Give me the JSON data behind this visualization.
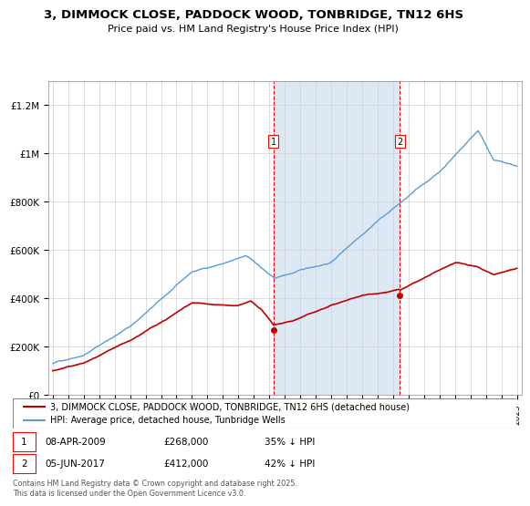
{
  "title_line1": "3, DIMMOCK CLOSE, PADDOCK WOOD, TONBRIDGE, TN12 6HS",
  "title_line2": "Price paid vs. HM Land Registry's House Price Index (HPI)",
  "ylabel_ticks": [
    "£0",
    "£200K",
    "£400K",
    "£600K",
    "£800K",
    "£1M",
    "£1.2M"
  ],
  "ylabel_values": [
    0,
    200000,
    400000,
    600000,
    800000,
    1000000,
    1200000
  ],
  "ylim": [
    0,
    1300000
  ],
  "purchase1": {
    "date": "08-APR-2009",
    "price": 268000,
    "pct": "35%",
    "label": "1",
    "year": 2009.27
  },
  "purchase2": {
    "date": "05-JUN-2017",
    "price": 412000,
    "pct": "42%",
    "label": "2",
    "year": 2017.43
  },
  "hpi_color": "#5b9bd5",
  "price_color": "#c00000",
  "shaded_color": "#dce9f5",
  "legend_line1": "3, DIMMOCK CLOSE, PADDOCK WOOD, TONBRIDGE, TN12 6HS (detached house)",
  "legend_line2": "HPI: Average price, detached house, Tunbridge Wells",
  "footer": "Contains HM Land Registry data © Crown copyright and database right 2025.\nThis data is licensed under the Open Government Licence v3.0.",
  "xlim_start": 1994.7,
  "xlim_end": 2025.3
}
